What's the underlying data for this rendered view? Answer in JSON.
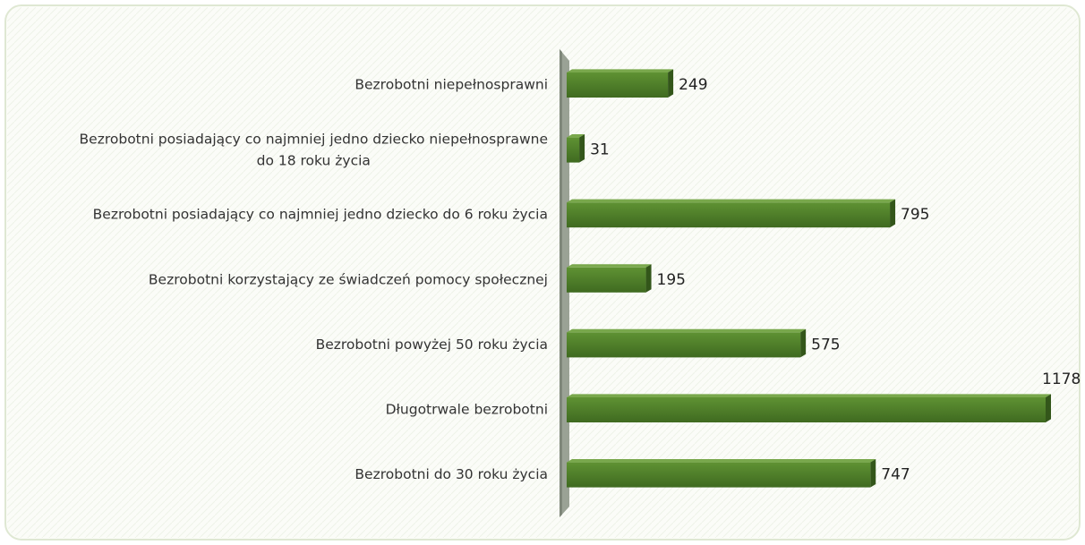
{
  "chart_data": {
    "type": "bar",
    "orientation": "horizontal",
    "categories": [
      "Bezrobotni niepełnosprawni",
      "Bezrobotni posiadający co najmniej jedno dziecko niepełnosprawne\ndo 18 roku życia",
      "Bezrobotni posiadający co najmniej jedno dziecko do 6 roku życia",
      "Bezrobotni korzystający ze świadczeń pomocy społecznej",
      "Bezrobotni powyżej 50 roku życia",
      "Długotrwale bezrobotni",
      "Bezrobotni do 30 roku życia"
    ],
    "values": [
      249,
      31,
      795,
      195,
      575,
      1178,
      747
    ],
    "color": "#4e7d2a"
  }
}
